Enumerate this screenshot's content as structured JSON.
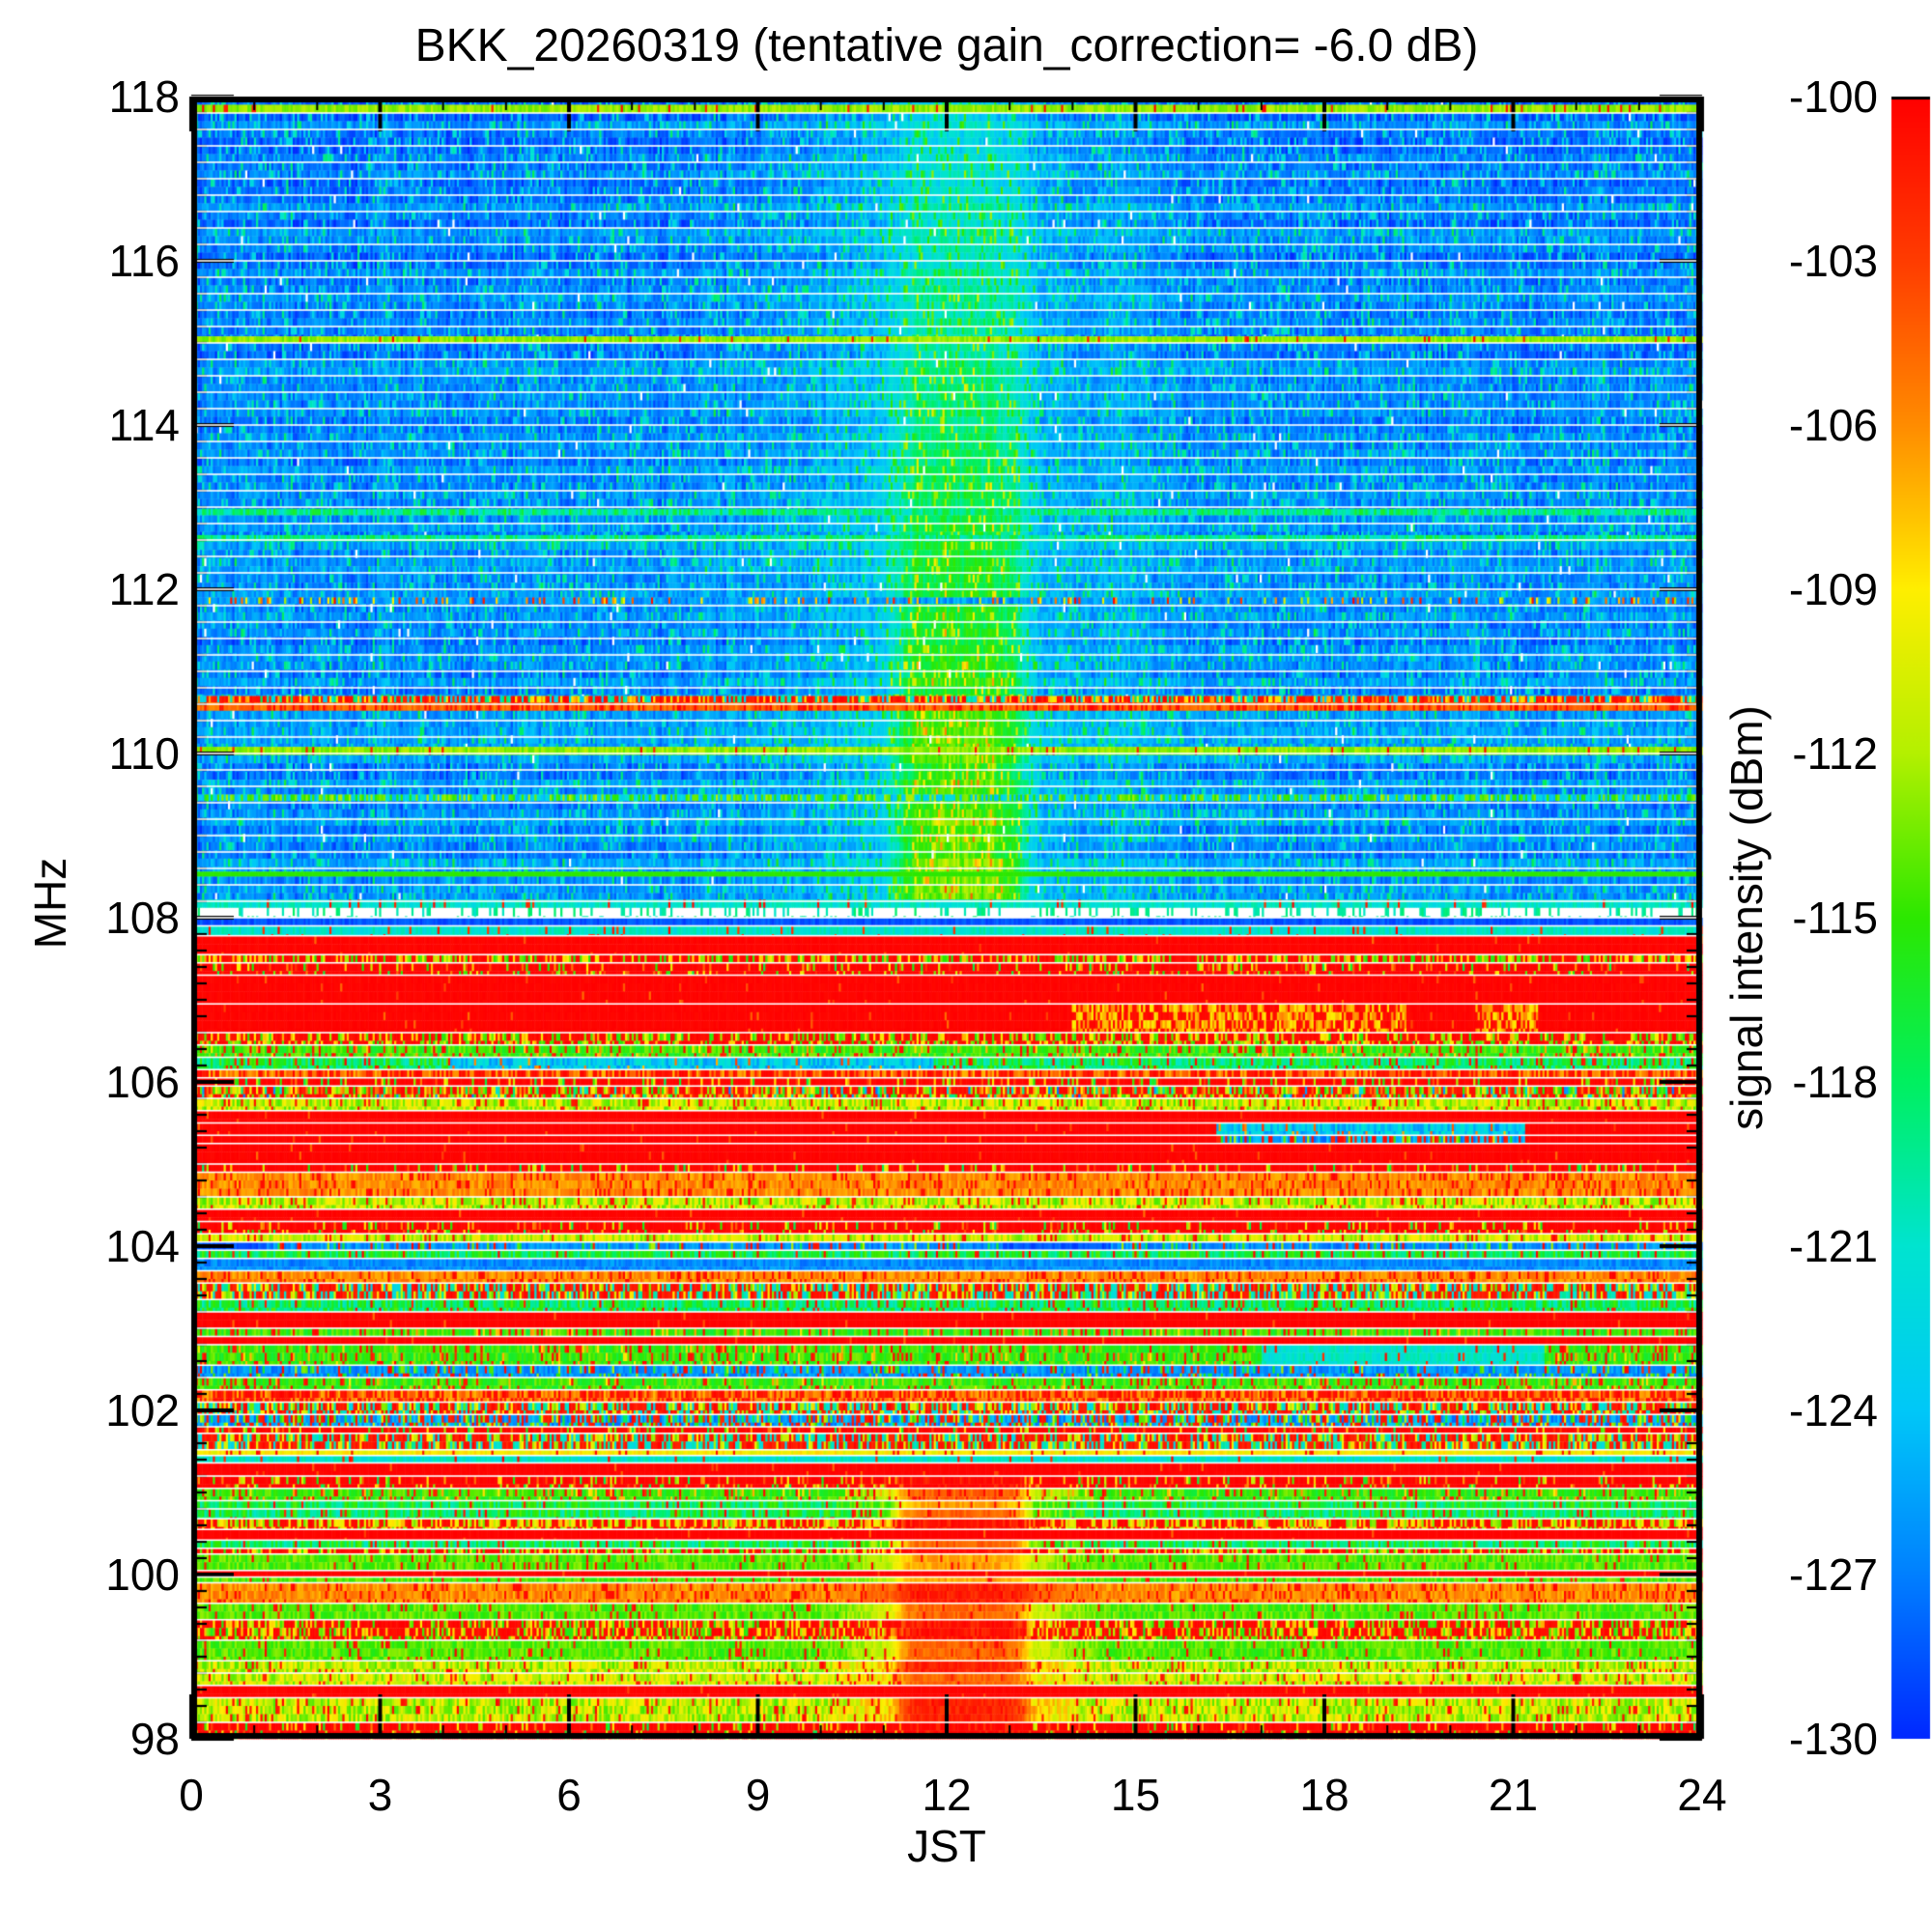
{
  "title": "BKK_20260319 (tentative gain_correction= -6.0 dB)",
  "chart_data": {
    "type": "heatmap",
    "subtype": "radio-spectrogram",
    "title": "BKK_20260319 (tentative gain_correction= -6.0 dB)",
    "xlabel": "JST",
    "ylabel": "MHz",
    "x_range": [
      0,
      24
    ],
    "x_ticks": [
      0,
      3,
      6,
      9,
      12,
      15,
      18,
      21,
      24
    ],
    "x_minor_step": 1,
    "y_range": [
      98,
      118
    ],
    "y_ticks": [
      98,
      100,
      102,
      104,
      106,
      108,
      110,
      112,
      114,
      116,
      118
    ],
    "y_minor_step": 0.2,
    "grid": false,
    "seed": 20260319,
    "colorbar": {
      "label": "signal intensity (dBm)",
      "min": -130,
      "max": -100,
      "ticks": [
        -100,
        -103,
        -106,
        -109,
        -112,
        -115,
        -118,
        -121,
        -124,
        -127,
        -130
      ],
      "colormap": [
        {
          "v": -100,
          "c": "#ff0000"
        },
        {
          "v": -103,
          "c": "#ff3c00"
        },
        {
          "v": -106,
          "c": "#ff8c00"
        },
        {
          "v": -109,
          "c": "#ffee00"
        },
        {
          "v": -112,
          "c": "#b4f000"
        },
        {
          "v": -115,
          "c": "#2ce800"
        },
        {
          "v": -118,
          "c": "#00f060"
        },
        {
          "v": -121,
          "c": "#00e4d0"
        },
        {
          "v": -124,
          "c": "#00c8f8"
        },
        {
          "v": -127,
          "c": "#0080ff"
        },
        {
          "v": -130,
          "c": "#0028ff"
        }
      ]
    },
    "description": "24-hour FM/aeronautical band spectrogram. 108-118 MHz is weak blue noise (~-126 dBm) with a green midday ionospheric enhancement around 11.1-13.3 JST; 98-108 MHz is the FM broadcast band with strong red/yellow/green horizontal channel stripes and a red/orange midday blob at 98-101.3 MHz around 11.2-13.3 JST.",
    "midday_aero_enhancement": {
      "t_center": 12.2,
      "t_halfwidth": 1.05,
      "halo_sigma": 2.7,
      "halo_db": 2.8,
      "freq_range": [
        108,
        118
      ],
      "max_boost_db": 10.5,
      "boost_falloff_mhz": 12.5
    },
    "midday_broadcast_blob": {
      "t_center": 12.25,
      "t_halfwidth": 1.12,
      "fringe_halfwidth": 1.7,
      "freq_range": [
        98,
        101.36
      ],
      "levels_dbm": {
        "red": -100.6,
        "orange": -103.4,
        "amber": -105.6
      }
    },
    "bands": [
      {
        "f0": 117.9,
        "f1": 118.0,
        "p": "aero"
      },
      {
        "f0": 117.8,
        "f1": 117.9,
        "p": "grn_line"
      },
      {
        "f0": 115.08,
        "f1": 117.8,
        "p": "aero"
      },
      {
        "f0": 115.0,
        "f1": 115.08,
        "p": "grn_line"
      },
      {
        "f0": 112.98,
        "f1": 115.0,
        "p": "aero"
      },
      {
        "f0": 112.9,
        "f1": 112.98,
        "p": "cyan_grn_line"
      },
      {
        "f0": 112.66,
        "f1": 112.9,
        "p": "aero"
      },
      {
        "f0": 112.58,
        "f1": 112.66,
        "p": "cyan_grn_line"
      },
      {
        "f0": 111.9,
        "f1": 112.58,
        "p": "aero"
      },
      {
        "f0": 111.82,
        "f1": 111.9,
        "p": "sp_line"
      },
      {
        "f0": 110.7,
        "f1": 111.82,
        "p": "aero"
      },
      {
        "f0": 110.62,
        "f1": 110.7,
        "p": "red_sp_line"
      },
      {
        "f0": 110.52,
        "f1": 110.62,
        "p": "orange_line"
      },
      {
        "f0": 110.08,
        "f1": 110.52,
        "p": "aero"
      },
      {
        "f0": 109.98,
        "f1": 110.08,
        "p": "grn_line"
      },
      {
        "f0": 109.5,
        "f1": 109.98,
        "p": "aero"
      },
      {
        "f0": 109.42,
        "f1": 109.5,
        "p": "grn_sp_line"
      },
      {
        "f0": 108.56,
        "f1": 109.42,
        "p": "aero"
      },
      {
        "f0": 108.5,
        "f1": 108.56,
        "p": "cyan_line"
      },
      {
        "f0": 108.22,
        "f1": 108.5,
        "p": "aero"
      },
      {
        "f0": 108.12,
        "f1": 108.22,
        "p": "cyan"
      },
      {
        "f0": 108.0,
        "f1": 108.12,
        "p": "white"
      },
      {
        "f0": 107.9,
        "f1": 108.0,
        "p": "navy"
      },
      {
        "f0": 107.78,
        "f1": 107.9,
        "p": "cyan"
      },
      {
        "f0": 107.55,
        "f1": 107.78,
        "p": "red"
      },
      {
        "f0": 107.45,
        "f1": 107.55,
        "p": "mix_rg"
      },
      {
        "f0": 107.3,
        "f1": 107.45,
        "p": "red_sp"
      },
      {
        "f0": 106.95,
        "f1": 107.3,
        "p": "red"
      },
      {
        "f0": 106.6,
        "f1": 106.95,
        "p": "red",
        "seg": [
          [
            14.0,
            19.3,
            "yel_sp_on_red"
          ],
          [
            20.4,
            21.4,
            "yel_sp_on_red"
          ]
        ]
      },
      {
        "f0": 106.45,
        "f1": 106.6,
        "p": "mix_rg"
      },
      {
        "f0": 106.3,
        "f1": 106.45,
        "p": "grn_sp"
      },
      {
        "f0": 106.15,
        "f1": 106.3,
        "p": "grn_cyan",
        "seg": [
          [
            4.1,
            11.8,
            "cyan_blue"
          ]
        ]
      },
      {
        "f0": 106.05,
        "f1": 106.15,
        "p": "red_amber"
      },
      {
        "f0": 105.95,
        "f1": 106.05,
        "p": "red_sp"
      },
      {
        "f0": 105.8,
        "f1": 105.95,
        "p": "mix"
      },
      {
        "f0": 105.65,
        "f1": 105.8,
        "p": "yel_grn"
      },
      {
        "f0": 105.5,
        "f1": 105.65,
        "p": "red"
      },
      {
        "f0": 105.35,
        "f1": 105.5,
        "p": "red",
        "seg": [
          [
            16.3,
            21.2,
            "cyan_blue"
          ]
        ]
      },
      {
        "f0": 105.25,
        "f1": 105.35,
        "p": "red",
        "seg": [
          [
            16.3,
            21.2,
            "bluemix"
          ]
        ]
      },
      {
        "f0": 105.0,
        "f1": 105.25,
        "p": "red"
      },
      {
        "f0": 104.9,
        "f1": 105.0,
        "p": "red_sp"
      },
      {
        "f0": 104.6,
        "f1": 104.9,
        "p": "amber"
      },
      {
        "f0": 104.45,
        "f1": 104.6,
        "p": "yel_grn"
      },
      {
        "f0": 104.3,
        "f1": 104.45,
        "p": "red"
      },
      {
        "f0": 104.15,
        "f1": 104.3,
        "p": "red_sp"
      },
      {
        "f0": 104.05,
        "f1": 104.15,
        "p": "grn_yel"
      },
      {
        "f0": 103.95,
        "f1": 104.05,
        "p": "blue_sp",
        "seg": [
          [
            0,
            1.2,
            "navy"
          ],
          [
            12.9,
            14.6,
            "navy"
          ]
        ]
      },
      {
        "f0": 103.85,
        "f1": 103.95,
        "p": "cyan_grn"
      },
      {
        "f0": 103.7,
        "f1": 103.85,
        "p": "blue"
      },
      {
        "f0": 103.55,
        "f1": 103.7,
        "p": "amber"
      },
      {
        "f0": 103.35,
        "f1": 103.55,
        "p": "red_cyan"
      },
      {
        "f0": 103.2,
        "f1": 103.35,
        "p": "grn_cyan"
      },
      {
        "f0": 103.0,
        "f1": 103.2,
        "p": "red"
      },
      {
        "f0": 102.9,
        "f1": 103.0,
        "p": "grn_sp"
      },
      {
        "f0": 102.8,
        "f1": 102.9,
        "p": "red"
      },
      {
        "f0": 102.55,
        "f1": 102.8,
        "p": "grn_sp",
        "seg": [
          [
            17.0,
            21.5,
            "cyan"
          ]
        ]
      },
      {
        "f0": 102.4,
        "f1": 102.55,
        "p": "blue_sp"
      },
      {
        "f0": 102.25,
        "f1": 102.4,
        "p": "grn_sp"
      },
      {
        "f0": 102.1,
        "f1": 102.25,
        "p": "red_amber"
      },
      {
        "f0": 101.95,
        "f1": 102.1,
        "p": "red_cyan"
      },
      {
        "f0": 101.8,
        "f1": 101.95,
        "p": "bluemix"
      },
      {
        "f0": 101.72,
        "f1": 101.8,
        "p": "red_sp"
      },
      {
        "f0": 101.52,
        "f1": 101.72,
        "p": "red_cyan"
      },
      {
        "f0": 101.45,
        "f1": 101.52,
        "p": "yel"
      },
      {
        "f0": 101.36,
        "f1": 101.45,
        "p": "cyan"
      },
      {
        "f0": 101.2,
        "f1": 101.36,
        "p": "red"
      },
      {
        "f0": 101.05,
        "f1": 101.2,
        "p": "red_sp",
        "blob": "red"
      },
      {
        "f0": 100.9,
        "f1": 101.05,
        "p": "grn_sp",
        "blob": "orange"
      },
      {
        "f0": 100.8,
        "f1": 100.9,
        "p": "cyan_grn",
        "blob": "amber"
      },
      {
        "f0": 100.68,
        "f1": 100.8,
        "p": "grn_cyan",
        "blob": "orange"
      },
      {
        "f0": 100.55,
        "f1": 100.68,
        "p": "mix_ry",
        "blob": "red"
      },
      {
        "f0": 100.42,
        "f1": 100.55,
        "p": "red"
      },
      {
        "f0": 100.32,
        "f1": 100.42,
        "p": "grn_cyan",
        "blob": "orange"
      },
      {
        "f0": 100.25,
        "f1": 100.32,
        "p": "mix_rg",
        "blob": "red"
      },
      {
        "f0": 100.05,
        "f1": 100.25,
        "p": "grn",
        "blob": "amber"
      },
      {
        "f0": 99.97,
        "f1": 100.05,
        "p": "red"
      },
      {
        "f0": 99.9,
        "f1": 99.97,
        "p": "grn",
        "blob": "amber"
      },
      {
        "f0": 99.65,
        "f1": 99.9,
        "p": "amber",
        "blob": "red"
      },
      {
        "f0": 99.45,
        "f1": 99.65,
        "p": "grn",
        "blob": "orange"
      },
      {
        "f0": 99.2,
        "f1": 99.45,
        "p": "mix_rg",
        "blob": "red"
      },
      {
        "f0": 98.95,
        "f1": 99.2,
        "p": "grn",
        "blob": "orange"
      },
      {
        "f0": 98.8,
        "f1": 98.95,
        "p": "yel_grn",
        "blob": "red"
      },
      {
        "f0": 98.65,
        "f1": 98.8,
        "p": "grn_yel",
        "blob": "orange"
      },
      {
        "f0": 98.5,
        "f1": 98.65,
        "p": "red"
      },
      {
        "f0": 98.2,
        "f1": 98.5,
        "p": "yel_grn",
        "blob": "red"
      },
      {
        "f0": 98.0,
        "f1": 98.2,
        "p": "red_sp",
        "blob": "red"
      }
    ]
  }
}
